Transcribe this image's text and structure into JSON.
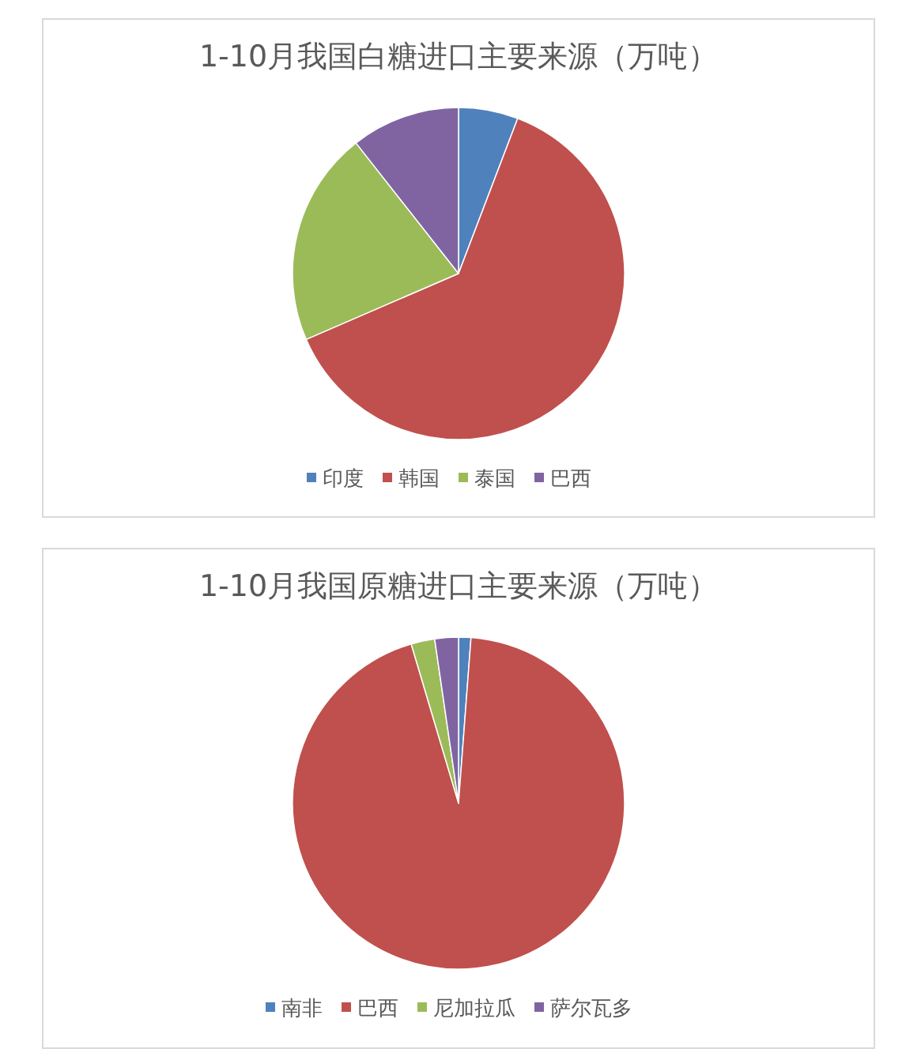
{
  "chart_data": [
    {
      "type": "pie",
      "title": "1-10月我国白糖进口主要来源（万吨）",
      "categories": [
        "印度",
        "韩国",
        "泰国",
        "巴西"
      ],
      "values": [
        5.8,
        62.7,
        20.9,
        10.6
      ],
      "colors": [
        "#4f81bd",
        "#c0504d",
        "#9bbb59",
        "#8064a2"
      ],
      "legend": "bottom"
    },
    {
      "type": "pie",
      "title": "1-10月我国原糖进口主要来源（万吨）",
      "categories": [
        "南非",
        "巴西",
        "尼加拉瓜",
        "萨尔瓦多"
      ],
      "values": [
        1.2,
        94.2,
        2.3,
        2.3
      ],
      "colors": [
        "#4f81bd",
        "#c0504d",
        "#9bbb59",
        "#8064a2"
      ],
      "legend": "bottom"
    }
  ]
}
